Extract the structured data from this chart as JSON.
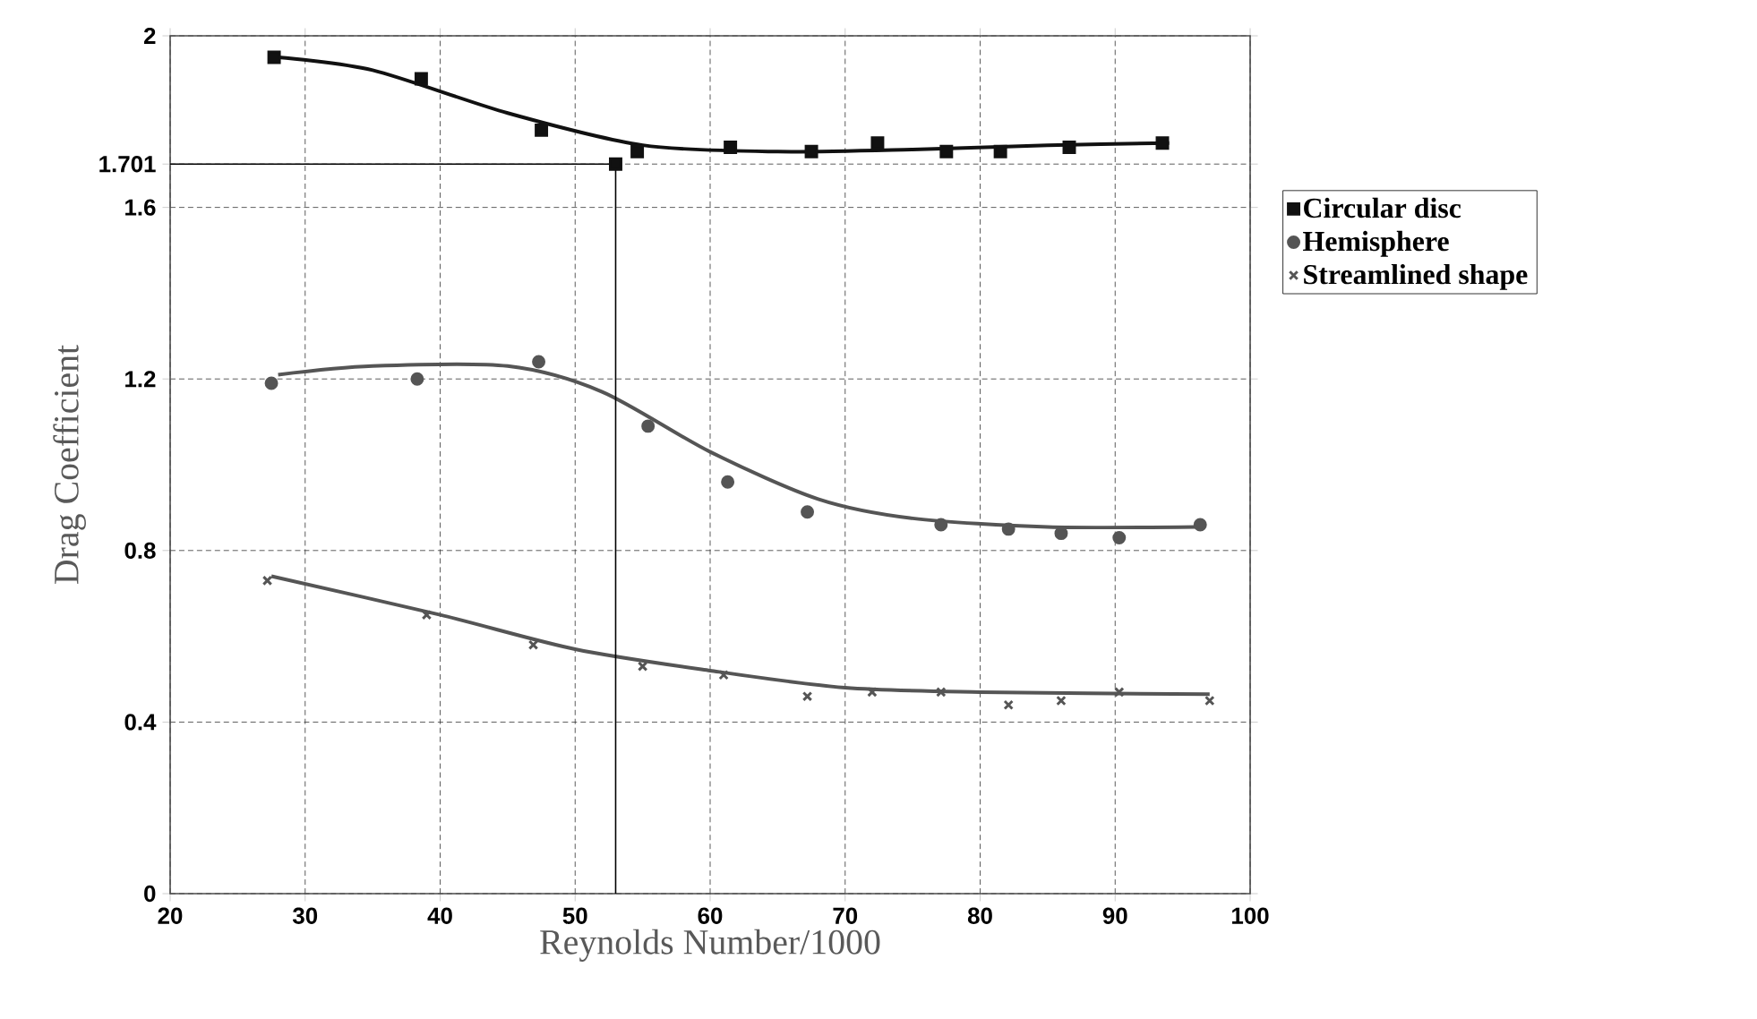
{
  "chart_data": {
    "type": "scatter",
    "xlabel": "Reynolds Number/1000",
    "ylabel": "Drag Coefficient",
    "xlim": [
      20,
      100
    ],
    "ylim": [
      0,
      2
    ],
    "xticks": [
      20,
      30,
      40,
      50,
      60,
      70,
      80,
      90,
      100
    ],
    "yticks": [
      0,
      0.4,
      0.8,
      1.2,
      1.6,
      1.701,
      2
    ],
    "grid": true,
    "legend": "right",
    "series": [
      {
        "name": "Circular disc",
        "marker": "square",
        "color": "#111111",
        "x": [
          27.7,
          38.6,
          47.5,
          53,
          54.6,
          61.5,
          67.5,
          72.4,
          77.5,
          81.5,
          86.6,
          93.5
        ],
        "values": [
          1.95,
          1.9,
          1.78,
          1.701,
          1.73,
          1.74,
          1.73,
          1.75,
          1.73,
          1.73,
          1.74,
          1.75
        ]
      },
      {
        "name": "Hemisphere",
        "marker": "circle",
        "color": "#555555",
        "x": [
          27.5,
          38.3,
          47.3,
          55.4,
          61.3,
          67.2,
          77.1,
          82.1,
          86,
          90.3,
          96.3
        ],
        "values": [
          1.19,
          1.2,
          1.24,
          1.09,
          0.96,
          0.89,
          0.86,
          0.85,
          0.84,
          0.83,
          0.86
        ]
      },
      {
        "name": "Streamlined shape",
        "marker": "cross",
        "color": "#555555",
        "x": [
          27.2,
          39,
          46.9,
          55,
          61,
          67.2,
          72,
          77.1,
          82.1,
          86,
          90.3,
          97
        ],
        "values": [
          0.73,
          0.65,
          0.58,
          0.53,
          0.51,
          0.46,
          0.47,
          0.47,
          0.44,
          0.45,
          0.47,
          0.45
        ]
      },
      {
        "type": "line",
        "color": "#111111",
        "x": [
          28,
          35,
          45,
          55,
          65,
          75,
          85,
          94
        ],
        "values": [
          1.95,
          1.92,
          1.82,
          1.745,
          1.73,
          1.735,
          1.745,
          1.75
        ]
      },
      {
        "type": "line",
        "color": "#555555",
        "x": [
          28,
          35,
          45,
          52,
          60,
          68,
          75,
          85,
          96
        ],
        "values": [
          1.21,
          1.23,
          1.23,
          1.17,
          1.03,
          0.92,
          0.875,
          0.855,
          0.855
        ]
      },
      {
        "type": "line",
        "color": "#555555",
        "x": [
          27.5,
          40,
          50,
          60,
          70,
          80,
          97
        ],
        "values": [
          0.74,
          0.65,
          0.57,
          0.52,
          0.48,
          0.47,
          0.465
        ]
      },
      {
        "type": "line",
        "color": "#000000",
        "x": [
          20,
          53,
          53
        ],
        "values": [
          1.701,
          1.701,
          0
        ]
      }
    ]
  }
}
